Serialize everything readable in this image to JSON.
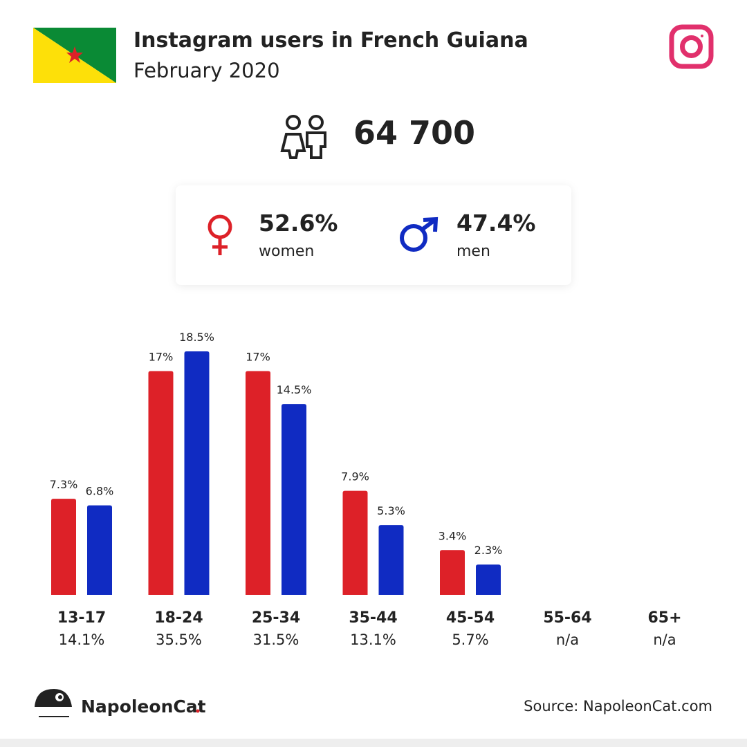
{
  "header": {
    "title": "Instagram users in French Guiana",
    "subtitle": "February 2020"
  },
  "total": "64 700",
  "gender": {
    "women": "52.6%",
    "men": "47.4%"
  },
  "chart_data": {
    "type": "bar",
    "categories": [
      "13-17",
      "18-24",
      "25-34",
      "35-44",
      "45-54",
      "55-64",
      "65+"
    ],
    "category_totals": [
      "14.1%",
      "35.5%",
      "31.5%",
      "13.1%",
      "5.7%",
      "n/a",
      "n/a"
    ],
    "series": [
      {
        "name": "women",
        "color": "#dd2128",
        "values": [
          7.3,
          17,
          17,
          7.9,
          3.4,
          null,
          null
        ],
        "value_labels": [
          "7.3%",
          "17%",
          "17%",
          "7.9%",
          "3.4%",
          null,
          null
        ]
      },
      {
        "name": "men",
        "color": "#102bc2",
        "values": [
          6.8,
          18.5,
          14.5,
          5.3,
          2.3,
          null,
          null
        ],
        "value_labels": [
          "6.8%",
          "18.5%",
          "14.5%",
          "5.3%",
          "2.3%",
          null,
          null
        ]
      }
    ]
  },
  "brand": "NapoleonCat",
  "source": "Source: NapoleonCat.com"
}
